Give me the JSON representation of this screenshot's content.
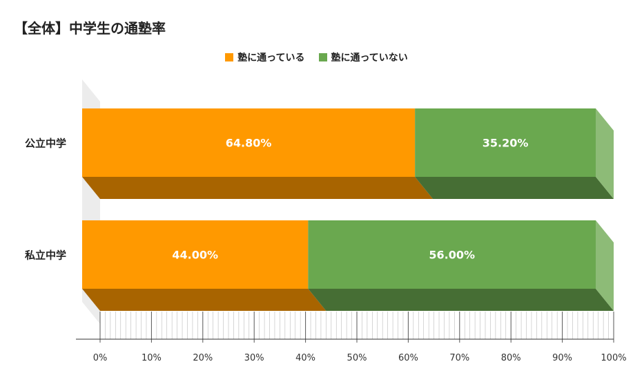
{
  "chart_data": {
    "type": "bar",
    "orientation": "horizontal",
    "stacked": true,
    "style": "3d",
    "title": "【全体】中学生の通塾率",
    "categories": [
      "公立中学",
      "私立中学"
    ],
    "series": [
      {
        "name": "塾に通っている",
        "values": [
          64.8,
          44.0
        ],
        "labels": [
          "64.80%",
          "44.00%"
        ]
      },
      {
        "name": "塾に通っていない",
        "values": [
          35.2,
          56.0
        ],
        "labels": [
          "35.20%",
          "56.00%"
        ]
      }
    ],
    "xlim": [
      0,
      100
    ],
    "xticks": [
      "0%",
      "10%",
      "20%",
      "30%",
      "40%",
      "50%",
      "60%",
      "70%",
      "80%",
      "90%",
      "100%"
    ],
    "legend_position": "top",
    "grid": false
  },
  "colors": {
    "series_front": [
      "#ff9900",
      "#6aa84f"
    ],
    "series_bottom": [
      "#a86400",
      "#466e34"
    ],
    "series_side": [
      "#ffb84d",
      "#8dbb77"
    ],
    "wall": "#ececec",
    "axis": "#333333"
  }
}
